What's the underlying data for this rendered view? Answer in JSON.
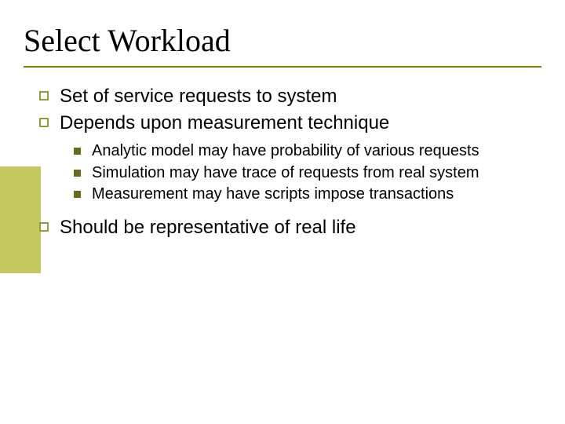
{
  "colors": {
    "background": "#ffffff",
    "title_text": "#000000",
    "body_text": "#000000",
    "underline": "#808000",
    "accent_block": "#c5c85e",
    "hollow_bullet_border": "#9a9a3a",
    "solid_bullet": "#6b6b1a"
  },
  "typography": {
    "title_font": "Times New Roman",
    "title_size_pt": 30,
    "body_font": "Verdana",
    "lvl1_size_pt": 18,
    "lvl2_size_pt": 15
  },
  "title": "Select Workload",
  "bullets": {
    "b1": "Set of service requests to system",
    "b2": "Depends upon measurement technique",
    "b2_sub": {
      "s1": "Analytic model may have probability of various requests",
      "s2": "Simulation may have trace of requests from real system",
      "s3": "Measurement may have scripts impose transactions"
    },
    "b3": "Should be representative of real life"
  }
}
